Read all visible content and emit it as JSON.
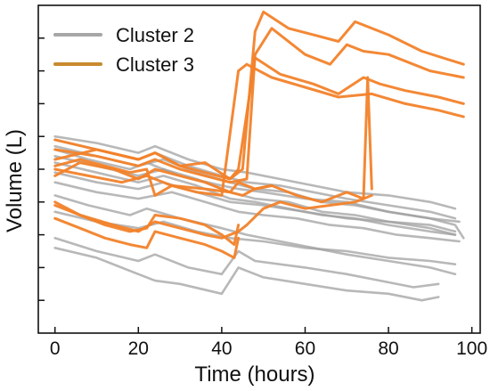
{
  "chart_data": {
    "type": "line",
    "title": "",
    "xlabel": "Time (hours)",
    "ylabel": "Volume (L)",
    "xlim": [
      -4,
      102
    ],
    "ylim": [
      0,
      10
    ],
    "xticks": [
      0,
      20,
      40,
      60,
      80,
      100
    ],
    "yticks_unlabeled": [
      1,
      2,
      3,
      4,
      5,
      6,
      7,
      8,
      9
    ],
    "grid": false,
    "legend": {
      "placement": "top-left",
      "entries": [
        {
          "label": "Cluster 2",
          "color": "#a6a6a6"
        },
        {
          "label": "Cluster 3",
          "color": "#c98a2e"
        }
      ]
    },
    "series": [
      {
        "cluster": "Cluster 2",
        "color": "#a0a0a0",
        "x": [
          0,
          8,
          18,
          22,
          30,
          40,
          44,
          50,
          60,
          70,
          80,
          90,
          96,
          98
        ],
        "y": [
          5.6,
          5.3,
          5.0,
          5.2,
          4.8,
          4.5,
          4.4,
          4.3,
          4.1,
          4.0,
          3.7,
          3.5,
          3.3,
          2.9
        ]
      },
      {
        "cluster": "Cluster 2",
        "color": "#a0a0a0",
        "x": [
          0,
          10,
          20,
          24,
          32,
          40,
          46,
          54,
          62,
          70,
          80,
          90,
          96
        ],
        "y": [
          5.9,
          5.6,
          5.3,
          5.5,
          5.1,
          4.8,
          4.6,
          4.5,
          4.3,
          4.1,
          3.9,
          3.7,
          3.5
        ]
      },
      {
        "cluster": "Cluster 2",
        "color": "#a0a0a0",
        "x": [
          0,
          10,
          20,
          24,
          32,
          40,
          46,
          54,
          62,
          70,
          80,
          90,
          96
        ],
        "y": [
          6.0,
          5.8,
          5.5,
          5.7,
          5.3,
          5.0,
          4.9,
          4.7,
          4.5,
          4.3,
          4.2,
          4.0,
          3.8
        ]
      },
      {
        "cluster": "Cluster 2",
        "color": "#a0a0a0",
        "x": [
          0,
          10,
          20,
          26,
          34,
          42,
          48,
          56,
          64,
          72,
          80,
          90,
          96
        ],
        "y": [
          5.4,
          5.1,
          4.8,
          5.0,
          4.7,
          4.3,
          4.1,
          4.0,
          3.7,
          3.6,
          3.4,
          3.3,
          3.1
        ]
      },
      {
        "cluster": "Cluster 2",
        "color": "#a0a0a0",
        "x": [
          0,
          10,
          20,
          26,
          34,
          42,
          48,
          56,
          64,
          72,
          80,
          90,
          96
        ],
        "y": [
          5.2,
          4.9,
          4.6,
          4.8,
          4.5,
          4.1,
          4.0,
          3.8,
          3.6,
          3.5,
          3.3,
          3.1,
          3.0
        ]
      },
      {
        "cluster": "Cluster 2",
        "color": "#a0a0a0",
        "x": [
          0,
          10,
          20,
          26,
          34,
          42,
          48,
          56,
          64,
          72,
          80,
          90,
          97
        ],
        "y": [
          5.7,
          5.4,
          5.1,
          5.3,
          4.9,
          4.6,
          4.4,
          4.3,
          4.0,
          3.9,
          3.7,
          3.5,
          3.4
        ]
      },
      {
        "cluster": "Cluster 2",
        "color": "#a0a0a0",
        "x": [
          0,
          10,
          20,
          28,
          36,
          44,
          50,
          58,
          66,
          74,
          82,
          90,
          97
        ],
        "y": [
          4.6,
          4.3,
          4.1,
          4.3,
          4.0,
          3.7,
          3.6,
          3.5,
          3.3,
          3.2,
          3.0,
          2.9,
          2.8
        ]
      },
      {
        "cluster": "Cluster 2",
        "color": "#a0a0a0",
        "x": [
          0,
          8,
          18,
          22,
          30,
          40,
          46,
          54,
          62,
          70,
          80,
          90,
          96
        ],
        "y": [
          4.2,
          3.9,
          3.6,
          3.8,
          3.5,
          3.2,
          3.0,
          2.8,
          2.6,
          2.4,
          2.2,
          2.0,
          1.8
        ]
      },
      {
        "cluster": "Cluster 2",
        "color": "#a0a0a0",
        "x": [
          0,
          10,
          20,
          24,
          30,
          40,
          44,
          50,
          60,
          70,
          80,
          88,
          92
        ],
        "y": [
          2.6,
          2.3,
          1.8,
          1.6,
          1.5,
          1.2,
          2.0,
          1.7,
          1.5,
          1.3,
          1.2,
          1.0,
          1.1
        ]
      },
      {
        "cluster": "Cluster 2",
        "color": "#a0a0a0",
        "x": [
          0,
          10,
          20,
          24,
          32,
          40,
          44,
          48,
          60,
          70,
          78,
          86,
          92
        ],
        "y": [
          2.9,
          2.5,
          2.2,
          2.4,
          2.0,
          1.8,
          2.5,
          2.2,
          2.0,
          1.8,
          1.6,
          1.4,
          1.5
        ]
      },
      {
        "cluster": "Cluster 2",
        "color": "#a0a0a0",
        "x": [
          0,
          10,
          20,
          26,
          34,
          42,
          50,
          60,
          70,
          80,
          90,
          96
        ],
        "y": [
          4.9,
          4.6,
          4.4,
          4.6,
          4.3,
          4.0,
          3.9,
          3.7,
          3.5,
          3.4,
          3.2,
          3.0
        ]
      },
      {
        "cluster": "Cluster 2",
        "color": "#a0a0a0",
        "x": [
          0,
          10,
          20,
          26,
          34,
          42,
          50,
          60,
          70,
          80,
          90,
          96
        ],
        "y": [
          3.7,
          3.4,
          3.2,
          3.4,
          3.1,
          2.9,
          2.8,
          2.6,
          2.5,
          2.3,
          2.2,
          2.1
        ]
      },
      {
        "cluster": "Cluster 3",
        "color": "#f2822a",
        "x": [
          0,
          10,
          20,
          24,
          30,
          36,
          42,
          45,
          48,
          50,
          56,
          62,
          68,
          72,
          80,
          88,
          98
        ],
        "y": [
          5.3,
          5.6,
          5.3,
          5.5,
          5.1,
          5.2,
          4.7,
          5.0,
          9.2,
          9.8,
          9.3,
          9.1,
          8.9,
          9.5,
          9.1,
          8.6,
          8.2
        ]
      },
      {
        "cluster": "Cluster 3",
        "color": "#f2822a",
        "x": [
          0,
          10,
          20,
          24,
          30,
          36,
          42,
          46,
          48,
          52,
          60,
          66,
          70,
          74,
          80,
          90,
          98
        ],
        "y": [
          5.6,
          5.4,
          5.1,
          5.3,
          5.0,
          4.8,
          4.6,
          4.7,
          8.5,
          9.3,
          8.5,
          8.2,
          8.8,
          8.6,
          8.5,
          8.0,
          7.8
        ]
      },
      {
        "cluster": "Cluster 3",
        "color": "#f2822a",
        "x": [
          0,
          10,
          20,
          24,
          30,
          36,
          42,
          44,
          48,
          54,
          62,
          68,
          74,
          78,
          84,
          92,
          98
        ],
        "y": [
          5.9,
          5.6,
          5.3,
          5.5,
          5.1,
          4.9,
          4.7,
          5.0,
          8.4,
          7.9,
          7.6,
          7.3,
          7.8,
          7.6,
          7.4,
          7.2,
          7.0
        ]
      },
      {
        "cluster": "Cluster 3",
        "color": "#f2822a",
        "x": [
          0,
          8,
          16,
          22,
          28,
          34,
          40,
          44,
          46,
          52,
          60,
          68,
          76,
          84,
          92,
          98
        ],
        "y": [
          5.0,
          4.8,
          4.6,
          4.8,
          4.5,
          4.3,
          4.2,
          8.0,
          8.2,
          7.8,
          7.5,
          7.2,
          7.3,
          7.0,
          6.8,
          6.6
        ]
      },
      {
        "cluster": "Cluster 3",
        "color": "#f2822a",
        "x": [
          0,
          6,
          14,
          20,
          24,
          30,
          36,
          42,
          44,
          48,
          52,
          58,
          64,
          70,
          74,
          75,
          76
        ],
        "y": [
          4.8,
          5.2,
          5.0,
          4.7,
          5.0,
          4.8,
          4.6,
          4.3,
          4.6,
          4.4,
          4.5,
          4.2,
          4.0,
          4.3,
          4.1,
          7.8,
          4.4
        ]
      },
      {
        "cluster": "Cluster 3",
        "color": "#f2822a",
        "x": [
          0,
          6,
          14,
          20,
          24,
          30,
          36,
          40,
          44,
          46,
          50,
          54,
          60,
          66,
          72,
          76
        ],
        "y": [
          3.9,
          3.6,
          3.3,
          3.1,
          3.4,
          3.2,
          3.0,
          2.9,
          3.1,
          3.3,
          3.8,
          4.0,
          3.8,
          3.9,
          4.0,
          4.2
        ]
      },
      {
        "cluster": "Cluster 3",
        "color": "#f2822a",
        "x": [
          0,
          6,
          12,
          18,
          22,
          24,
          30,
          36,
          40,
          43,
          44
        ],
        "y": [
          4.0,
          3.6,
          3.3,
          3.1,
          3.2,
          3.6,
          3.5,
          3.3,
          3.0,
          2.7,
          3.3
        ]
      },
      {
        "cluster": "Cluster 3",
        "color": "#f2822a",
        "x": [
          0,
          6,
          12,
          18,
          22,
          24,
          30,
          36,
          40,
          43,
          44
        ],
        "y": [
          3.5,
          3.2,
          2.9,
          2.7,
          2.6,
          3.1,
          2.9,
          2.7,
          2.5,
          2.3,
          2.9
        ]
      },
      {
        "cluster": "Cluster 3",
        "color": "#f2822a",
        "x": [
          0,
          6,
          12,
          18,
          22,
          24,
          28,
          36,
          42,
          45,
          48,
          52
        ],
        "y": [
          5.1,
          5.3,
          5.1,
          4.9,
          5.0,
          4.2,
          4.5,
          4.4,
          4.3,
          4.2,
          4.4,
          4.5
        ]
      }
    ]
  }
}
